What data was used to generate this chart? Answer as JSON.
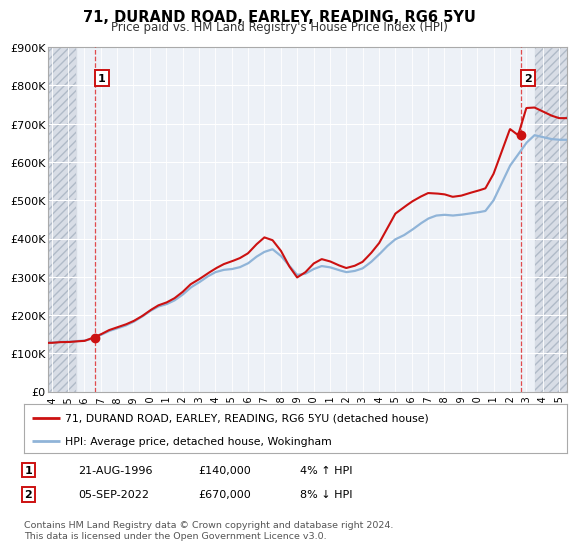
{
  "title": "71, DURAND ROAD, EARLEY, READING, RG6 5YU",
  "subtitle": "Price paid vs. HM Land Registry's House Price Index (HPI)",
  "ylim": [
    0,
    900000
  ],
  "yticks": [
    0,
    100000,
    200000,
    300000,
    400000,
    500000,
    600000,
    700000,
    800000,
    900000
  ],
  "ytick_labels": [
    "£0",
    "£100K",
    "£200K",
    "£300K",
    "£400K",
    "£500K",
    "£600K",
    "£700K",
    "£800K",
    "£900K"
  ],
  "background_color": "#ffffff",
  "plot_bg_color": "#edf1f7",
  "hatch_bg_color": "#d8dde6",
  "grid_color": "#ffffff",
  "transaction1": {
    "date_num": 1996.64,
    "price": 140000,
    "label": "1",
    "date_str": "21-AUG-1996"
  },
  "transaction2": {
    "date_num": 2022.67,
    "price": 670000,
    "label": "2",
    "date_str": "05-SEP-2022"
  },
  "hpi_line_color": "#90b4d8",
  "price_line_color": "#cc1111",
  "marker_color": "#cc1111",
  "legend_label1": "71, DURAND ROAD, EARLEY, READING, RG6 5YU (detached house)",
  "legend_label2": "HPI: Average price, detached house, Wokingham",
  "footnote1": "Contains HM Land Registry data © Crown copyright and database right 2024.",
  "footnote2": "This data is licensed under the Open Government Licence v3.0.",
  "table_row1": [
    "1",
    "21-AUG-1996",
    "£140,000",
    "4% ↑ HPI"
  ],
  "table_row2": [
    "2",
    "05-SEP-2022",
    "£670,000",
    "8% ↓ HPI"
  ],
  "xmin": 1993.8,
  "xmax": 2025.5,
  "hatch_left_end": 1995.5,
  "hatch_right_start": 2023.5,
  "xtick_years": [
    1994,
    1995,
    1996,
    1997,
    1998,
    1999,
    2000,
    2001,
    2002,
    2003,
    2004,
    2005,
    2006,
    2007,
    2008,
    2009,
    2010,
    2011,
    2012,
    2013,
    2014,
    2015,
    2016,
    2017,
    2018,
    2019,
    2020,
    2021,
    2022,
    2023,
    2024,
    2025
  ]
}
